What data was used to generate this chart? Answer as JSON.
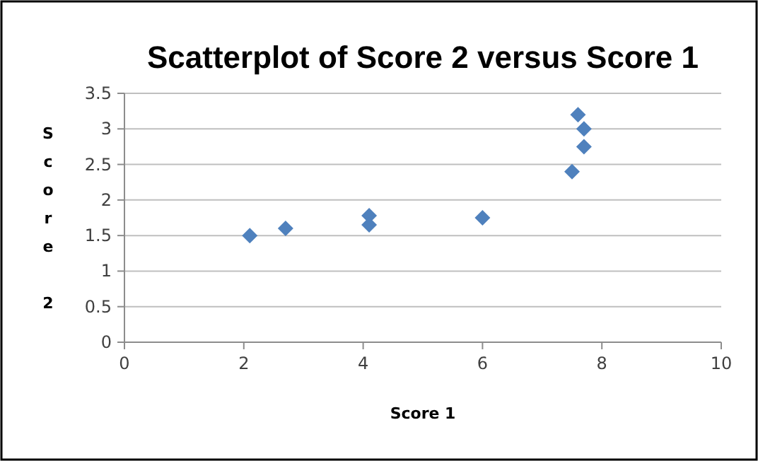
{
  "chart_data": {
    "type": "scatter",
    "title": "Scatterplot of Score 2 versus Score 1",
    "xlabel": "Score 1",
    "ylabel": "Score 2",
    "x": [
      2.1,
      2.7,
      4.1,
      4.1,
      6,
      7.5,
      7.6,
      7.7,
      7.7
    ],
    "series": [
      {
        "color": "#4f81bd",
        "values": [
          1.5,
          1.6,
          1.78,
          1.65,
          1.75,
          2.4,
          3.2,
          3.0,
          2.75
        ]
      }
    ],
    "xlim": [
      0,
      10
    ],
    "xticks": [
      0,
      2,
      4,
      6,
      8,
      10
    ],
    "ylim": [
      0,
      3.5
    ],
    "yticks": [
      0,
      0.5,
      1,
      1.5,
      2,
      2.5,
      3,
      3.5
    ],
    "grid": "y",
    "marker": "diamond"
  }
}
